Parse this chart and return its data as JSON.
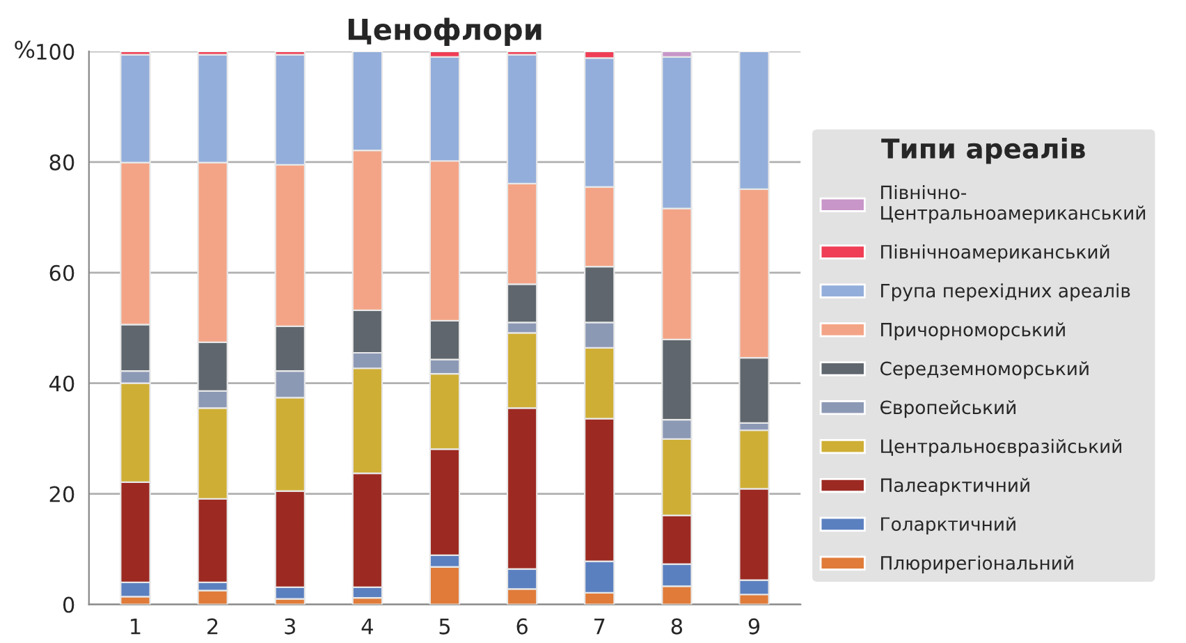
{
  "chart_data": {
    "type": "bar",
    "stacked": true,
    "title": "Ценофлори",
    "ylabel": "%",
    "legend_title": "Типи ареалів",
    "categories": [
      "1",
      "2",
      "3",
      "4",
      "5",
      "6",
      "7",
      "8",
      "9"
    ],
    "ylim": [
      0,
      100
    ],
    "yticks": [
      0,
      20,
      40,
      60,
      80,
      100
    ],
    "grid": "y",
    "legend": "right",
    "series": [
      {
        "name": "Плюрирегіональний",
        "color": "#e07b39",
        "values": [
          1.4,
          2.5,
          1.0,
          1.2,
          6.8,
          2.8,
          2.1,
          3.3,
          1.8
        ]
      },
      {
        "name": "Голарктичний",
        "color": "#5b80c0",
        "values": [
          2.6,
          1.5,
          2.1,
          1.9,
          2.1,
          3.6,
          5.7,
          4.0,
          2.6
        ]
      },
      {
        "name": "Палеарктичний",
        "color": "#9c2a22",
        "values": [
          18.1,
          15.1,
          17.4,
          20.6,
          19.2,
          29.1,
          25.8,
          8.8,
          16.5
        ]
      },
      {
        "name": "Центральноєвразійський",
        "color": "#cfae35",
        "values": [
          17.9,
          16.4,
          16.9,
          19.0,
          13.6,
          13.6,
          12.8,
          13.8,
          10.6
        ]
      },
      {
        "name": "Європейський",
        "color": "#8c99b5",
        "values": [
          2.2,
          3.1,
          4.8,
          2.8,
          2.6,
          1.9,
          4.6,
          3.5,
          1.3
        ]
      },
      {
        "name": "Середземноморський",
        "color": "#5f666d",
        "values": [
          8.4,
          8.8,
          8.1,
          7.7,
          7.0,
          6.9,
          10.1,
          14.5,
          11.8
        ]
      },
      {
        "name": "Причорноморський",
        "color": "#f4a486",
        "values": [
          29.3,
          32.5,
          29.2,
          28.9,
          28.9,
          18.2,
          14.4,
          23.7,
          30.5
        ]
      },
      {
        "name": "Група перехідних ареалів",
        "color": "#93aedb",
        "values": [
          19.5,
          19.5,
          19.9,
          17.9,
          18.8,
          23.3,
          23.3,
          27.4,
          24.9
        ]
      },
      {
        "name": "Північноамериканський",
        "color": "#ef3e55",
        "values": [
          0.6,
          0.6,
          0.6,
          null,
          1.0,
          0.6,
          1.2,
          null,
          null
        ]
      },
      {
        "name": "Північно-\nЦентральноамериканський",
        "color": "#c896c8",
        "values": [
          null,
          null,
          null,
          null,
          null,
          null,
          null,
          1.0,
          null
        ]
      }
    ]
  }
}
